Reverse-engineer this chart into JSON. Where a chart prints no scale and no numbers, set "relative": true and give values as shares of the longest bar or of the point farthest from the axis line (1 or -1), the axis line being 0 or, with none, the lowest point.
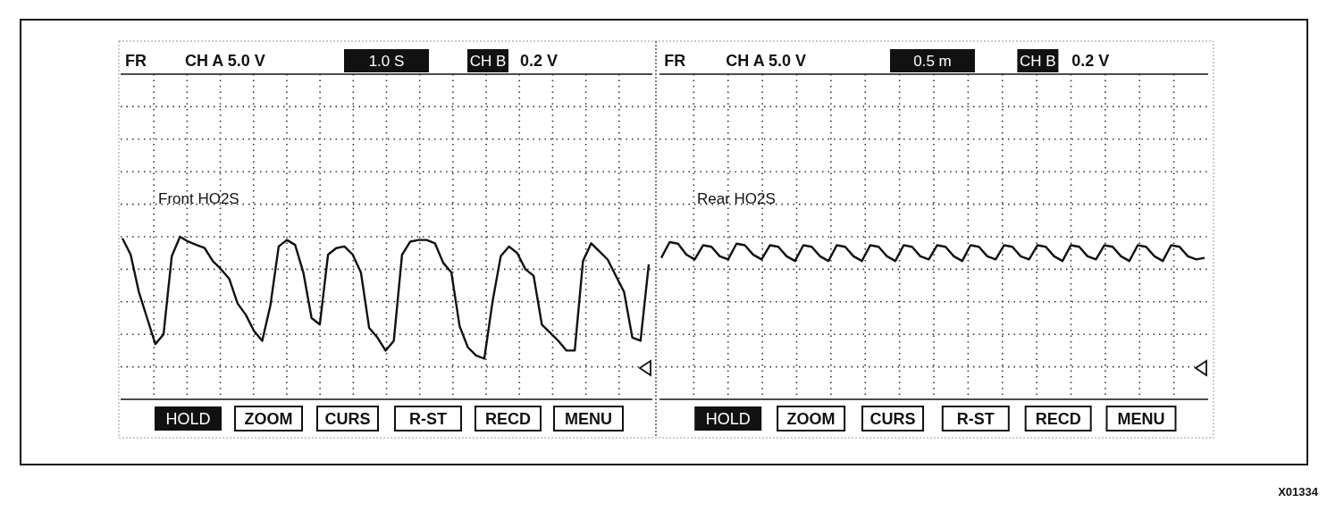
{
  "chart_data": [
    {
      "type": "line",
      "relative": true,
      "grid": true,
      "categories": [
        null,
        null,
        null,
        null,
        null,
        null,
        null,
        null,
        null,
        null,
        null,
        null,
        null,
        null,
        null,
        null,
        null,
        null,
        null,
        null,
        null,
        null,
        null,
        null,
        null,
        null,
        null,
        null,
        null,
        null,
        null,
        null,
        null,
        null,
        null,
        null,
        null,
        null,
        null,
        null,
        null,
        null,
        null,
        null,
        null,
        null,
        null,
        null,
        null,
        null,
        null,
        null,
        null,
        null,
        null,
        null,
        null,
        null,
        null,
        null,
        null,
        null,
        null,
        null,
        null
      ],
      "series": [
        {
          "name": "Front HO2S",
          "color": "#111111",
          "values": [
            0.99,
            0.89,
            0.66,
            0.5,
            0.34,
            0.4,
            0.88,
            1,
            0.97,
            0.95,
            0.93,
            0.85,
            0.8,
            0.74,
            0.59,
            0.52,
            0.42,
            0.36,
            0.58,
            0.94,
            0.98,
            0.95,
            0.78,
            0.5,
            0.46,
            0.89,
            0.93,
            0.94,
            0.89,
            0.78,
            0.44,
            0.38,
            0.3,
            0.36,
            0.89,
            0.97,
            0.98,
            0.98,
            0.96,
            0.84,
            0.78,
            0.45,
            0.32,
            0.27,
            0.25,
            0.6,
            0.88,
            0.94,
            0.9,
            0.8,
            0.76,
            0.46,
            0.41,
            0.36,
            0.3,
            0.3,
            0.85,
            0.96,
            0.91,
            0.86,
            0.76,
            0.66,
            0.38,
            0.36,
            0.83
          ]
        }
      ],
      "annotations": [
        "FR",
        "CH A 5.0 V",
        "1.0 S",
        "CH B",
        "0.2 V",
        "HOLD",
        "ZOOM",
        "CURS",
        "R-ST",
        "RECD",
        "MENU"
      ]
    },
    {
      "type": "line",
      "relative": true,
      "grid": true,
      "categories": [
        null,
        null,
        null,
        null,
        null,
        null,
        null,
        null,
        null,
        null,
        null,
        null,
        null,
        null,
        null,
        null,
        null,
        null,
        null,
        null,
        null,
        null,
        null,
        null,
        null,
        null,
        null,
        null,
        null,
        null,
        null,
        null,
        null,
        null,
        null,
        null,
        null,
        null,
        null,
        null,
        null,
        null,
        null,
        null,
        null,
        null,
        null,
        null,
        null,
        null,
        null,
        null,
        null,
        null,
        null,
        null,
        null,
        null,
        null,
        null,
        null,
        null,
        null,
        null,
        null,
        null
      ],
      "series": [
        {
          "name": "Rear HO2S",
          "color": "#111111",
          "values": [
            0.9,
            1,
            0.99,
            0.92,
            0.89,
            0.98,
            0.97,
            0.91,
            0.89,
            0.99,
            0.98,
            0.92,
            0.89,
            0.98,
            0.97,
            0.91,
            0.88,
            0.98,
            0.97,
            0.91,
            0.88,
            0.98,
            0.97,
            0.91,
            0.88,
            0.98,
            0.97,
            0.91,
            0.88,
            0.98,
            0.97,
            0.91,
            0.89,
            0.98,
            0.97,
            0.91,
            0.88,
            0.98,
            0.97,
            0.91,
            0.89,
            0.98,
            0.97,
            0.91,
            0.89,
            0.98,
            0.97,
            0.91,
            0.88,
            0.98,
            0.97,
            0.91,
            0.89,
            0.98,
            0.97,
            0.91,
            0.88,
            0.98,
            0.97,
            0.91,
            0.88,
            0.98,
            0.97,
            0.91,
            0.89,
            0.9
          ]
        }
      ],
      "annotations": [
        "FR",
        "CH A 5.0 V",
        "0.5 m",
        "CH B",
        "0.2 V",
        "HOLD",
        "ZOOM",
        "CURS",
        "R-ST",
        "RECD",
        "MENU",
        "X01334"
      ]
    }
  ]
}
